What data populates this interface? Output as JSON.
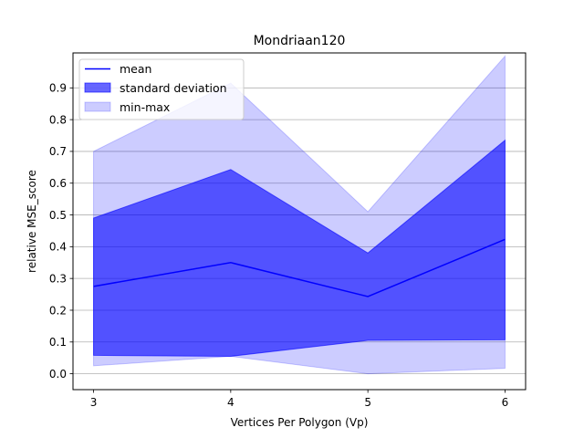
{
  "chart_data": {
    "type": "line",
    "title": "Mondriaan120",
    "xlabel": "Vertices Per Polygon (Vp)",
    "ylabel": "relative MSE_score",
    "x": [
      3,
      4,
      5,
      6
    ],
    "xticks": [
      "3",
      "4",
      "5",
      "6"
    ],
    "yticks": [
      "0.0",
      "0.1",
      "0.2",
      "0.3",
      "0.4",
      "0.5",
      "0.6",
      "0.7",
      "0.8",
      "0.9"
    ],
    "xlim": [
      2.85,
      6.15
    ],
    "ylim": [
      -0.05,
      1.01
    ],
    "grid": "horizontal",
    "legend_position": "top-left",
    "series": [
      {
        "name": "mean",
        "kind": "line",
        "values": [
          0.275,
          0.35,
          0.243,
          0.423
        ],
        "color": "#0000ff"
      },
      {
        "name": "standard deviation",
        "kind": "band",
        "lower": [
          0.058,
          0.055,
          0.105,
          0.107
        ],
        "upper": [
          0.49,
          0.643,
          0.38,
          0.735
        ],
        "color": "#0000ff",
        "opacity": 0.6
      },
      {
        "name": "min-max",
        "kind": "band",
        "lower": [
          0.025,
          0.055,
          0.0,
          0.017
        ],
        "upper": [
          0.7,
          0.915,
          0.51,
          1.0
        ],
        "color": "#0000ff",
        "opacity": 0.2
      }
    ]
  }
}
